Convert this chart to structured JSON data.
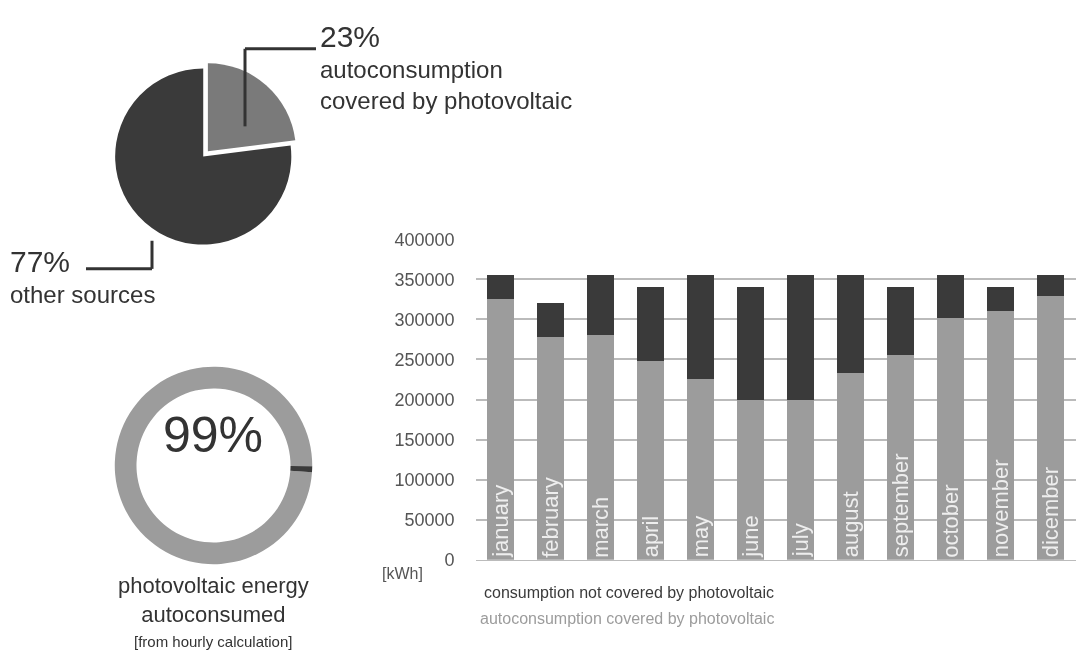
{
  "chart_data": [
    {
      "type": "pie",
      "categories": [
        "autoconsumption\ncovered by photovoltaic",
        "other sources"
      ],
      "values": [
        23,
        77
      ],
      "colors": [
        "#7a7a7a",
        "#3a3a3a"
      ],
      "value_labels": [
        "23%",
        "77%"
      ]
    },
    {
      "type": "donut",
      "title": "photovoltaic energy\nautoconsumed",
      "subtitle": "[from hourly calculation]",
      "categories": [
        null,
        null
      ],
      "values": [
        99,
        1
      ],
      "colors": [
        "#9c9c9c",
        "#3a3a3a"
      ],
      "value_labels": [
        "99%",
        null
      ]
    },
    {
      "type": "bar",
      "stacked": true,
      "categories": [
        "january",
        "february",
        "march",
        "april",
        "may",
        "june",
        "july",
        "august",
        "september",
        "october",
        "november",
        "dicember"
      ],
      "series": [
        {
          "name": "autoconsumption covered by photovoltaic",
          "color": "#9c9c9c",
          "values": [
            326000,
            278000,
            280000,
            248000,
            226000,
            199000,
            199000,
            233000,
            256000,
            302000,
            311000,
            329000
          ]
        },
        {
          "name": "consumption not covered by photovoltaic",
          "color": "#3a3a3a",
          "values": [
            29000,
            42000,
            75000,
            93000,
            129000,
            142000,
            156000,
            122000,
            85000,
            53000,
            30000,
            26000
          ]
        }
      ],
      "ylabel": "[kWh]",
      "ylim": [
        0,
        400000
      ],
      "yticks": [
        0,
        50000,
        100000,
        150000,
        200000,
        250000,
        300000,
        350000,
        400000
      ],
      "grid": "y",
      "legend": "bottom"
    }
  ]
}
